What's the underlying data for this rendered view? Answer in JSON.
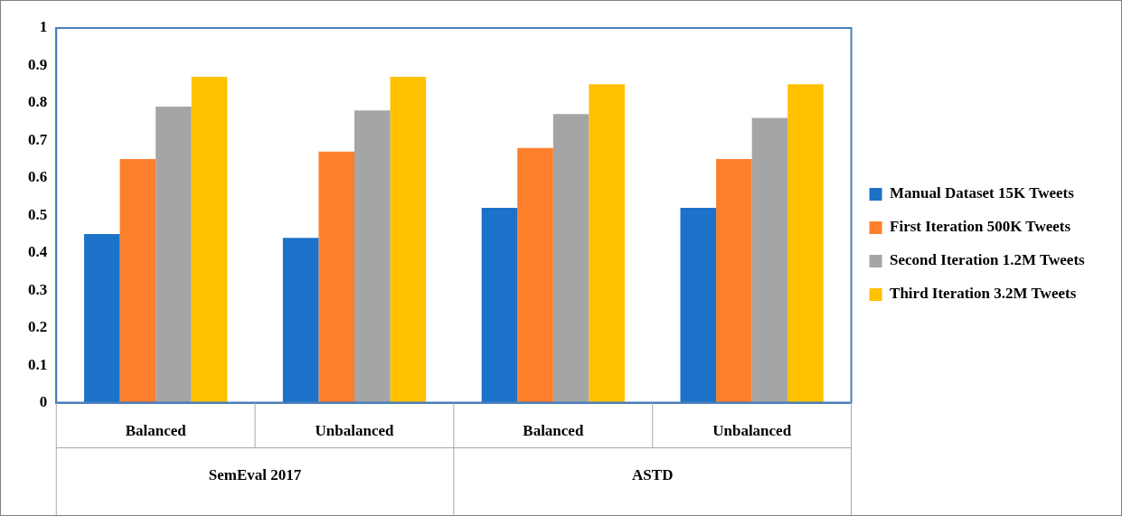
{
  "chart_data": {
    "type": "bar",
    "categories": [
      "Balanced",
      "Unbalanced",
      "Balanced",
      "Unbalanced"
    ],
    "series": [
      {
        "name": "Manual Dataset 15K Tweets",
        "color": "#1b72c8",
        "values": [
          0.45,
          0.44,
          0.52,
          0.52
        ]
      },
      {
        "name": "First Iteration 500K Tweets",
        "color": "#fd7f2c",
        "values": [
          0.65,
          0.67,
          0.68,
          0.65
        ]
      },
      {
        "name": "Second Iteration 1.2M Tweets",
        "color": "#a5a5a5",
        "values": [
          0.79,
          0.78,
          0.77,
          0.76
        ]
      },
      {
        "name": "Third Iteration 3.2M Tweets",
        "color": "#ffc000",
        "values": [
          0.87,
          0.87,
          0.85,
          0.85
        ]
      }
    ],
    "ylim": [
      0,
      1
    ],
    "yticks": [
      0,
      0.1,
      0.2,
      0.3,
      0.4,
      0.5,
      0.6,
      0.7,
      0.8,
      0.9,
      1
    ],
    "legend": "right",
    "annotations": [
      "SemEval 2017",
      "ASTD"
    ]
  }
}
